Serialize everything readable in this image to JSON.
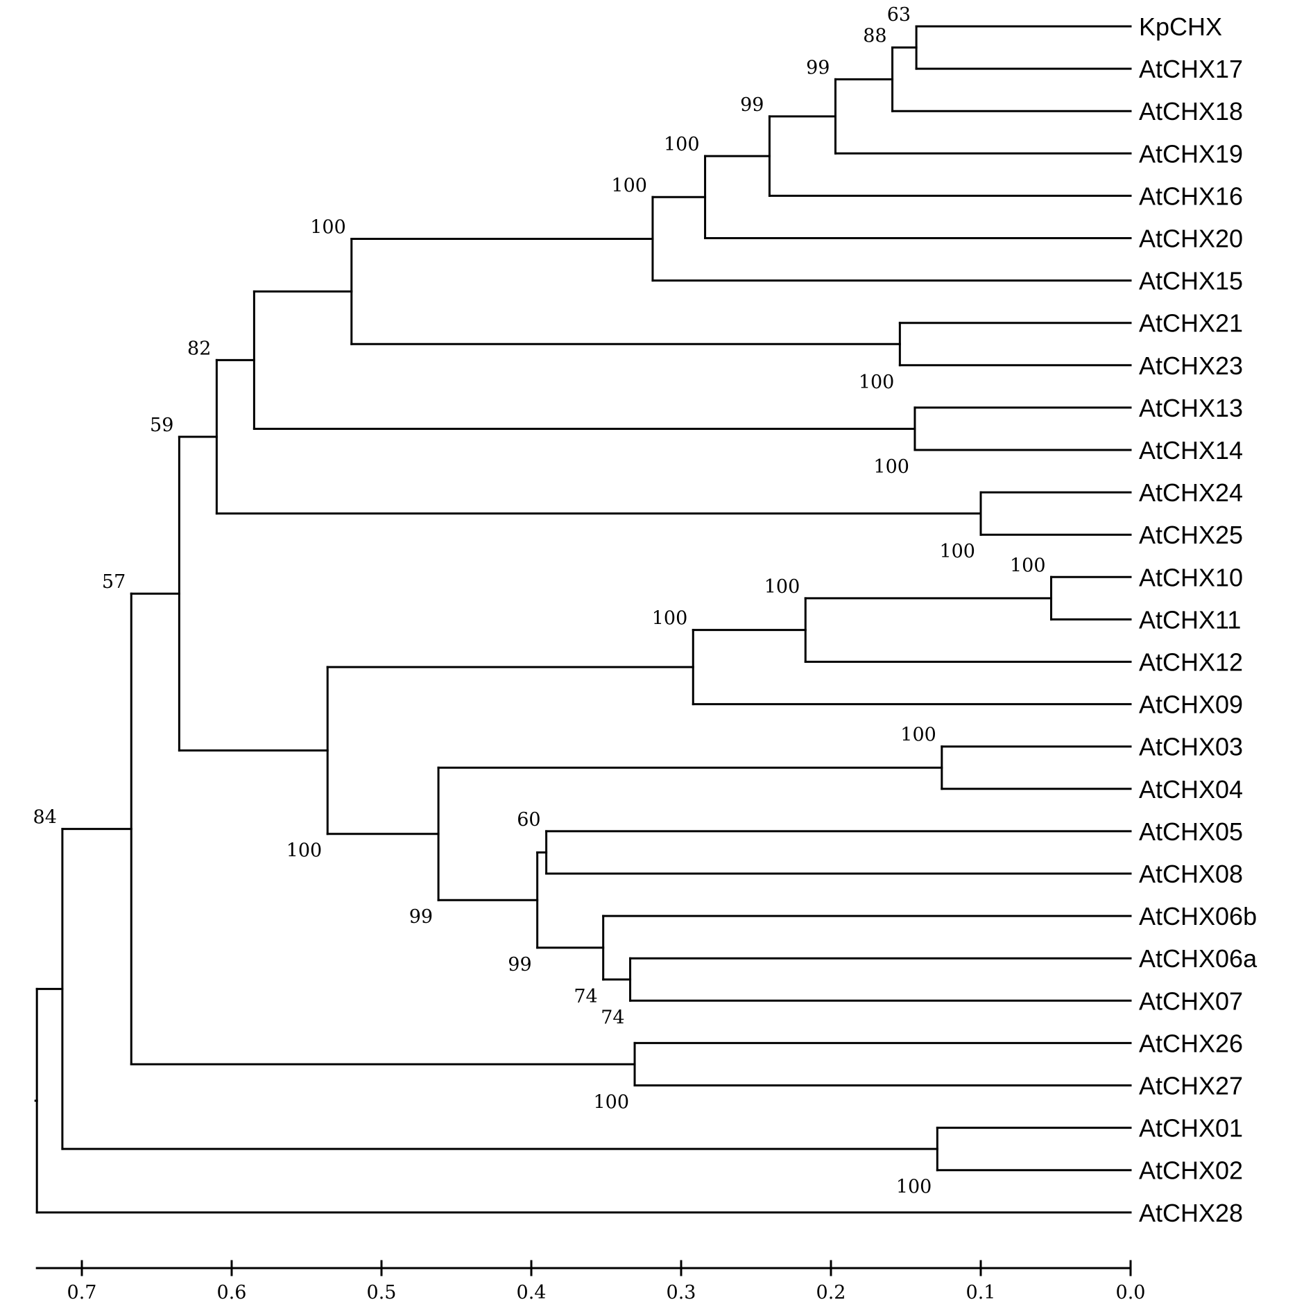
{
  "diagram": {
    "type": "phylogenetic_tree",
    "scale_axis": {
      "ticks": [
        "0.7",
        "0.6",
        "0.5",
        "0.4",
        "0.3",
        "0.2",
        "0.1",
        "0.0"
      ],
      "tick_values": [
        0.7,
        0.6,
        0.5,
        0.4,
        0.3,
        0.2,
        0.1,
        0.0
      ],
      "range": [
        0.73,
        0.0
      ]
    },
    "leaves": [
      "KpCHX",
      "AtCHX17",
      "AtCHX18",
      "AtCHX19",
      "AtCHX16",
      "AtCHX20",
      "AtCHX15",
      "AtCHX21",
      "AtCHX23",
      "AtCHX13",
      "AtCHX14",
      "AtCHX24",
      "AtCHX25",
      "AtCHX10",
      "AtCHX11",
      "AtCHX12",
      "AtCHX09",
      "AtCHX03",
      "AtCHX04",
      "AtCHX05",
      "AtCHX08",
      "AtCHX06b",
      "AtCHX06a",
      "AtCHX07",
      "AtCHX26",
      "AtCHX27",
      "AtCHX01",
      "AtCHX02",
      "AtCHX28"
    ],
    "nodes": [
      {
        "id": "n1",
        "height": 0.143,
        "children": [
          "L0",
          "L1"
        ],
        "bootstrap": "63",
        "label_pos": "above"
      },
      {
        "id": "n2",
        "height": 0.159,
        "children": [
          "n1",
          "L2"
        ],
        "bootstrap": "88",
        "label_pos": "above"
      },
      {
        "id": "n3",
        "height": 0.197,
        "children": [
          "n2",
          "L3"
        ],
        "bootstrap": "99",
        "label_pos": "above"
      },
      {
        "id": "n4",
        "height": 0.241,
        "children": [
          "n3",
          "L4"
        ],
        "bootstrap": "99",
        "label_pos": "above"
      },
      {
        "id": "n5",
        "height": 0.284,
        "children": [
          "n4",
          "L5"
        ],
        "bootstrap": "100",
        "label_pos": "above"
      },
      {
        "id": "n6",
        "height": 0.319,
        "children": [
          "n5",
          "L6"
        ],
        "bootstrap": "100",
        "label_pos": "above"
      },
      {
        "id": "n7",
        "height": 0.154,
        "children": [
          "L7",
          "L8"
        ],
        "bootstrap": "100",
        "label_pos": "below"
      },
      {
        "id": "n8",
        "height": 0.52,
        "children": [
          "n6",
          "n7"
        ],
        "bootstrap": "100",
        "label_pos": "above"
      },
      {
        "id": "n9",
        "height": 0.144,
        "children": [
          "L9",
          "L10"
        ],
        "bootstrap": "100",
        "label_pos": "below"
      },
      {
        "id": "n10",
        "height": 0.585,
        "children": [
          "n8",
          "n9"
        ],
        "bootstrap": "",
        "label_pos": "above"
      },
      {
        "id": "n11",
        "height": 0.1,
        "children": [
          "L11",
          "L12"
        ],
        "bootstrap": "100",
        "label_pos": "below"
      },
      {
        "id": "n12",
        "height": 0.61,
        "children": [
          "n10",
          "n11"
        ],
        "bootstrap": "82",
        "label_pos": "above"
      },
      {
        "id": "n13",
        "height": 0.053,
        "children": [
          "L13",
          "L14"
        ],
        "bootstrap": "100",
        "label_pos": "above"
      },
      {
        "id": "n14",
        "height": 0.217,
        "children": [
          "n13",
          "L15"
        ],
        "bootstrap": "100",
        "label_pos": "above"
      },
      {
        "id": "n15",
        "height": 0.292,
        "children": [
          "n14",
          "L16"
        ],
        "bootstrap": "100",
        "label_pos": "above"
      },
      {
        "id": "n16",
        "height": 0.126,
        "children": [
          "L17",
          "L18"
        ],
        "bootstrap": "100",
        "label_pos": "above"
      },
      {
        "id": "n17",
        "height": 0.39,
        "children": [
          "L19",
          "L20"
        ],
        "bootstrap": "60",
        "label_pos": "above"
      },
      {
        "id": "n18",
        "height": 0.334,
        "children": [
          "L22",
          "L23"
        ],
        "bootstrap": "74",
        "label_pos": "below"
      },
      {
        "id": "n19",
        "height": 0.352,
        "children": [
          "L21",
          "n18"
        ],
        "bootstrap": "74",
        "label_pos": "below"
      },
      {
        "id": "n20",
        "height": 0.396,
        "children": [
          "n17",
          "n19"
        ],
        "bootstrap": "99",
        "label_pos": "below"
      },
      {
        "id": "n21",
        "height": 0.462,
        "children": [
          "n16",
          "n20"
        ],
        "bootstrap": "99",
        "label_pos": "below"
      },
      {
        "id": "n22",
        "height": 0.536,
        "children": [
          "n15",
          "n21"
        ],
        "bootstrap": "100",
        "label_pos": "below"
      },
      {
        "id": "n23",
        "height": 0.635,
        "children": [
          "n12",
          "n22"
        ],
        "bootstrap": "59",
        "label_pos": "above"
      },
      {
        "id": "n24",
        "height": 0.331,
        "children": [
          "L24",
          "L25"
        ],
        "bootstrap": "100",
        "label_pos": "below"
      },
      {
        "id": "n25",
        "height": 0.667,
        "children": [
          "n23",
          "n24"
        ],
        "bootstrap": "57",
        "label_pos": "above"
      },
      {
        "id": "n26",
        "height": 0.129,
        "children": [
          "L26",
          "L27"
        ],
        "bootstrap": "100",
        "label_pos": "below"
      },
      {
        "id": "n27",
        "height": 0.713,
        "children": [
          "n25",
          "n26"
        ],
        "bootstrap": "84",
        "label_pos": "above"
      },
      {
        "id": "n28",
        "height": 0.73,
        "children": [
          "n27",
          "L28"
        ],
        "bootstrap": "",
        "label_pos": "above"
      }
    ]
  }
}
